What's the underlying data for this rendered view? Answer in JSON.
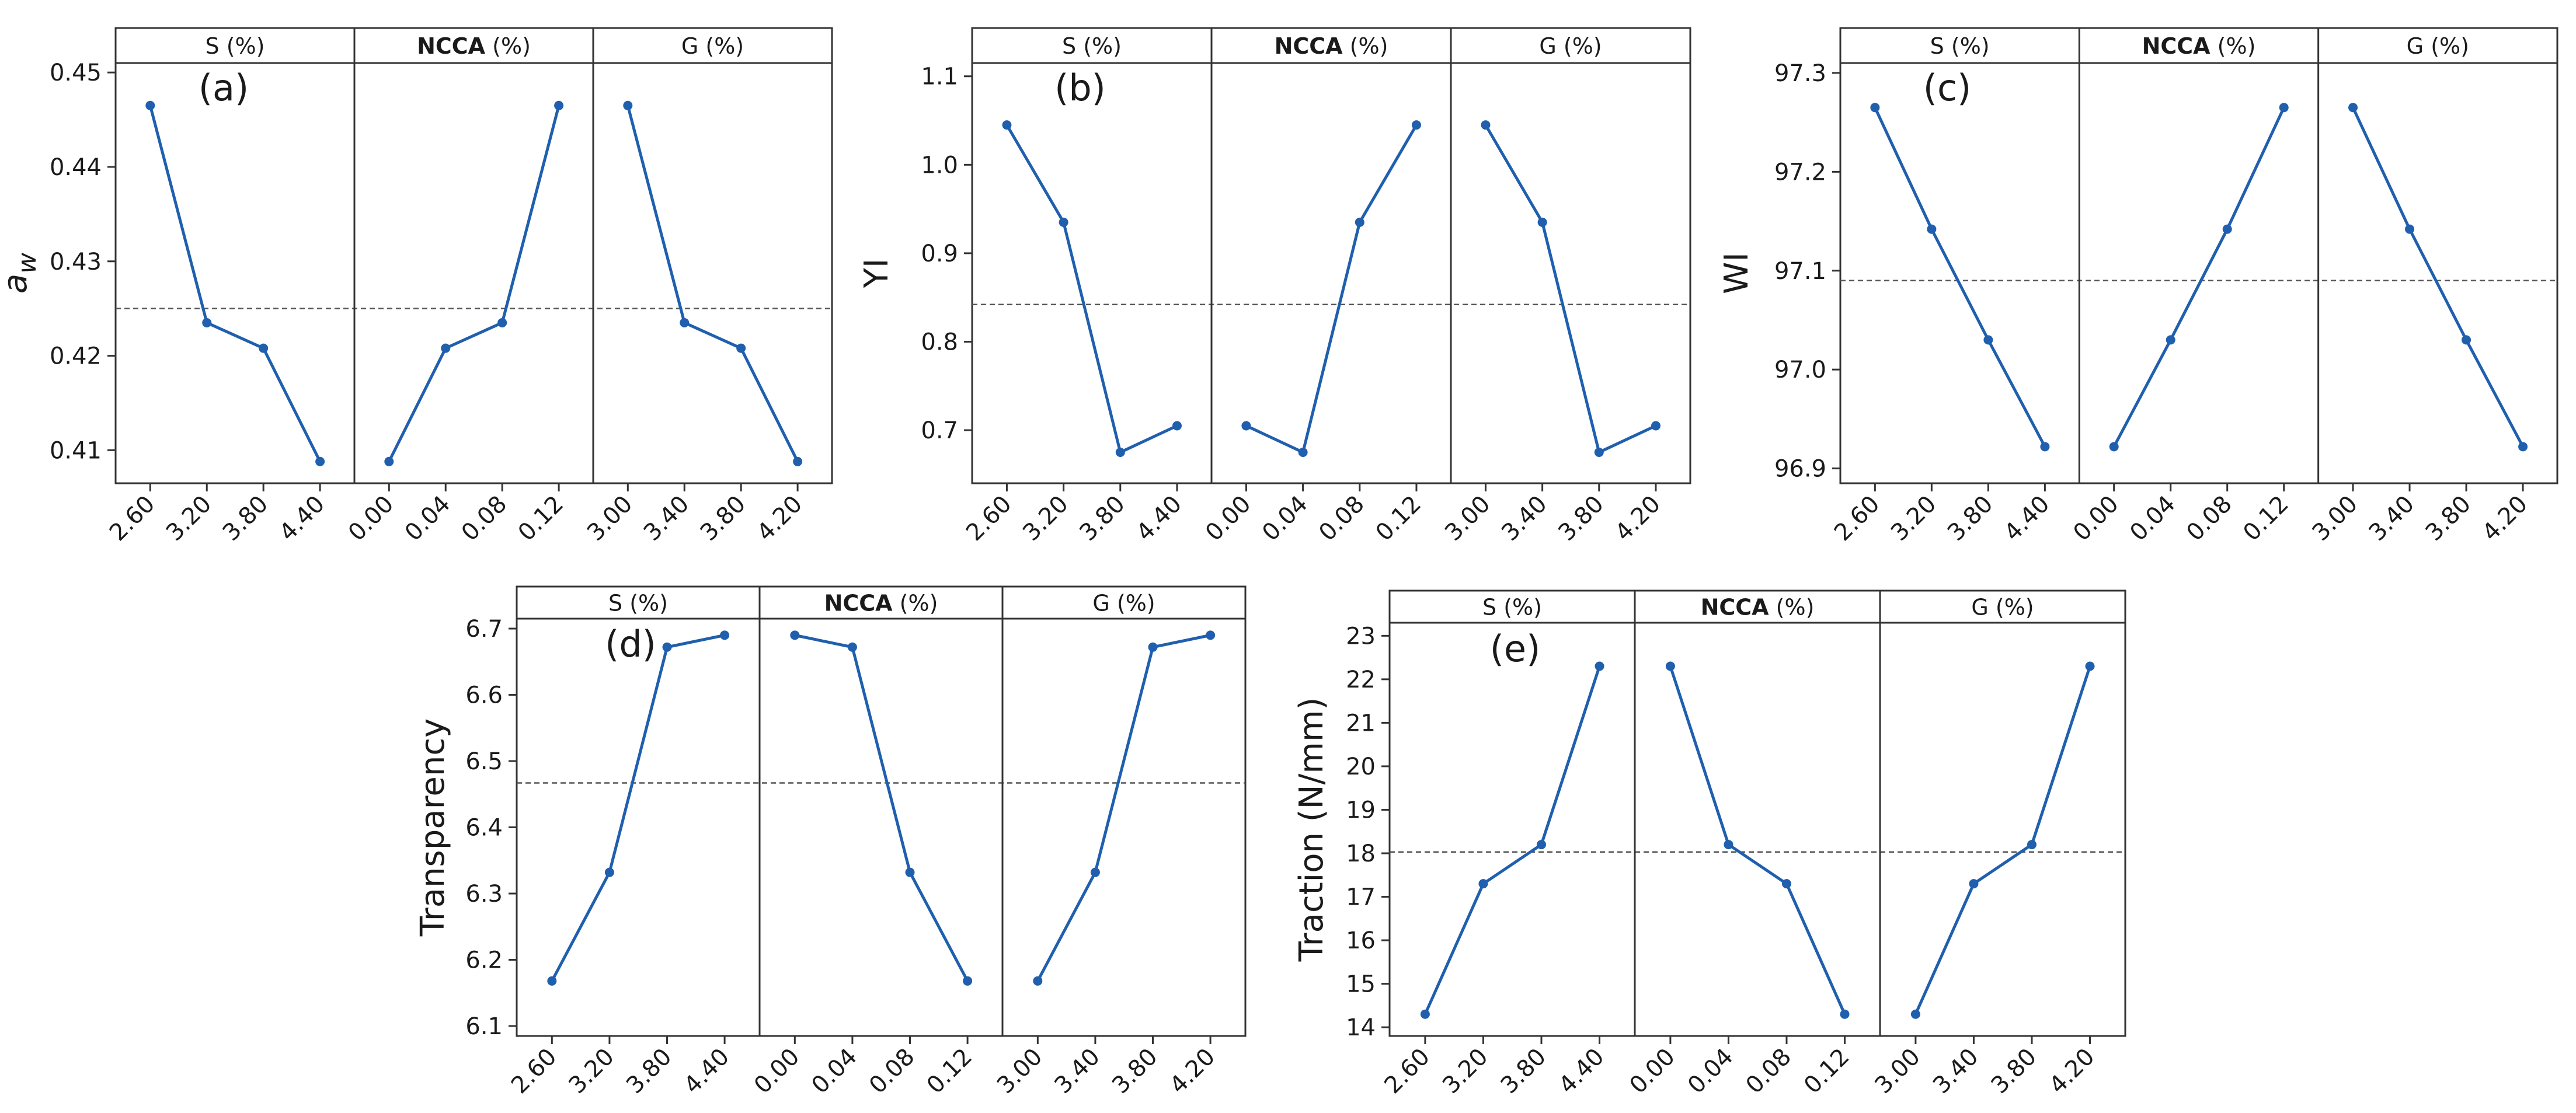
{
  "chart_data": [
    {
      "id": "a",
      "type": "line",
      "panel_label": "(a)",
      "ylabel": "a_w",
      "ylabel_main": "a",
      "ylabel_sub": "w",
      "ylim": [
        0.4065,
        0.451
      ],
      "yticks": [
        "0.41",
        "0.42",
        "0.43",
        "0.44",
        "0.45"
      ],
      "mean": 0.425,
      "facets": [
        {
          "title_bold": "",
          "title": "S (%)",
          "x": [
            "2.60",
            "3.20",
            "3.80",
            "4.40"
          ],
          "values": [
            0.4465,
            0.4235,
            0.4208,
            0.4088
          ]
        },
        {
          "title_bold": "NCCA",
          "title": " (%)",
          "x": [
            "0.00",
            "0.04",
            "0.08",
            "0.12"
          ],
          "values": [
            0.4088,
            0.4208,
            0.4235,
            0.4465
          ]
        },
        {
          "title_bold": "",
          "title": "G (%)",
          "x": [
            "3.00",
            "3.40",
            "3.80",
            "4.20"
          ],
          "values": [
            0.4465,
            0.4235,
            0.4208,
            0.4088
          ]
        }
      ]
    },
    {
      "id": "b",
      "type": "line",
      "panel_label": "(b)",
      "ylabel": "YI",
      "ylabel_main": "YI",
      "ylabel_sub": "",
      "ylim": [
        0.64,
        1.115
      ],
      "yticks": [
        "0.7",
        "0.8",
        "0.9",
        "1.0",
        "1.1"
      ],
      "mean": 0.842,
      "facets": [
        {
          "title_bold": "",
          "title": "S (%)",
          "x": [
            "2.60",
            "3.20",
            "3.80",
            "4.40"
          ],
          "values": [
            1.045,
            0.935,
            0.675,
            0.705
          ]
        },
        {
          "title_bold": "NCCA",
          "title": " (%)",
          "x": [
            "0.00",
            "0.04",
            "0.08",
            "0.12"
          ],
          "values": [
            0.705,
            0.675,
            0.935,
            1.045
          ]
        },
        {
          "title_bold": "",
          "title": "G (%)",
          "x": [
            "3.00",
            "3.40",
            "3.80",
            "4.20"
          ],
          "values": [
            1.045,
            0.935,
            0.675,
            0.705
          ]
        }
      ]
    },
    {
      "id": "c",
      "type": "line",
      "panel_label": "(c)",
      "ylabel": "WI",
      "ylabel_main": "WI",
      "ylabel_sub": "",
      "ylim": [
        96.885,
        97.31
      ],
      "yticks": [
        "96.9",
        "97.0",
        "97.1",
        "97.2",
        "97.3"
      ],
      "mean": 97.09,
      "facets": [
        {
          "title_bold": "",
          "title": "S (%)",
          "x": [
            "2.60",
            "3.20",
            "3.80",
            "4.40"
          ],
          "values": [
            97.265,
            97.142,
            97.03,
            96.922
          ]
        },
        {
          "title_bold": "NCCA",
          "title": " (%)",
          "x": [
            "0.00",
            "0.04",
            "0.08",
            "0.12"
          ],
          "values": [
            96.922,
            97.03,
            97.142,
            97.265
          ]
        },
        {
          "title_bold": "",
          "title": "G (%)",
          "x": [
            "3.00",
            "3.40",
            "3.80",
            "4.20"
          ],
          "values": [
            97.265,
            97.142,
            97.03,
            96.922
          ]
        }
      ]
    },
    {
      "id": "d",
      "type": "line",
      "panel_label": "(d)",
      "ylabel": "Transparency",
      "ylabel_main": "Transparency",
      "ylabel_sub": "",
      "ylim": [
        6.085,
        6.715
      ],
      "yticks": [
        "6.1",
        "6.2",
        "6.3",
        "6.4",
        "6.5",
        "6.6",
        "6.7"
      ],
      "mean": 6.467,
      "facets": [
        {
          "title_bold": "",
          "title": "S (%)",
          "x": [
            "2.60",
            "3.20",
            "3.80",
            "4.40"
          ],
          "values": [
            6.168,
            6.332,
            6.672,
            6.69
          ]
        },
        {
          "title_bold": "NCCA",
          "title": " (%)",
          "x": [
            "0.00",
            "0.04",
            "0.08",
            "0.12"
          ],
          "values": [
            6.69,
            6.672,
            6.332,
            6.168
          ]
        },
        {
          "title_bold": "",
          "title": "G (%)",
          "x": [
            "3.00",
            "3.40",
            "3.80",
            "4.20"
          ],
          "values": [
            6.168,
            6.332,
            6.672,
            6.69
          ]
        }
      ]
    },
    {
      "id": "e",
      "type": "line",
      "panel_label": "(e)",
      "ylabel": "Traction (N/mm)",
      "ylabel_main": "Traction (N/mm)",
      "ylabel_sub": "",
      "ylim": [
        13.8,
        23.3
      ],
      "yticks": [
        "14",
        "15",
        "16",
        "17",
        "18",
        "19",
        "20",
        "21",
        "22",
        "23"
      ],
      "mean": 18.03,
      "facets": [
        {
          "title_bold": "",
          "title": "S (%)",
          "x": [
            "2.60",
            "3.20",
            "3.80",
            "4.40"
          ],
          "values": [
            14.3,
            17.3,
            18.2,
            22.3
          ]
        },
        {
          "title_bold": "NCCA",
          "title": " (%)",
          "x": [
            "0.00",
            "0.04",
            "0.08",
            "0.12"
          ],
          "values": [
            22.3,
            18.2,
            17.3,
            14.3
          ]
        },
        {
          "title_bold": "",
          "title": "G (%)",
          "x": [
            "3.00",
            "3.40",
            "3.80",
            "4.20"
          ],
          "values": [
            14.3,
            17.3,
            18.2,
            22.3
          ]
        }
      ]
    }
  ]
}
